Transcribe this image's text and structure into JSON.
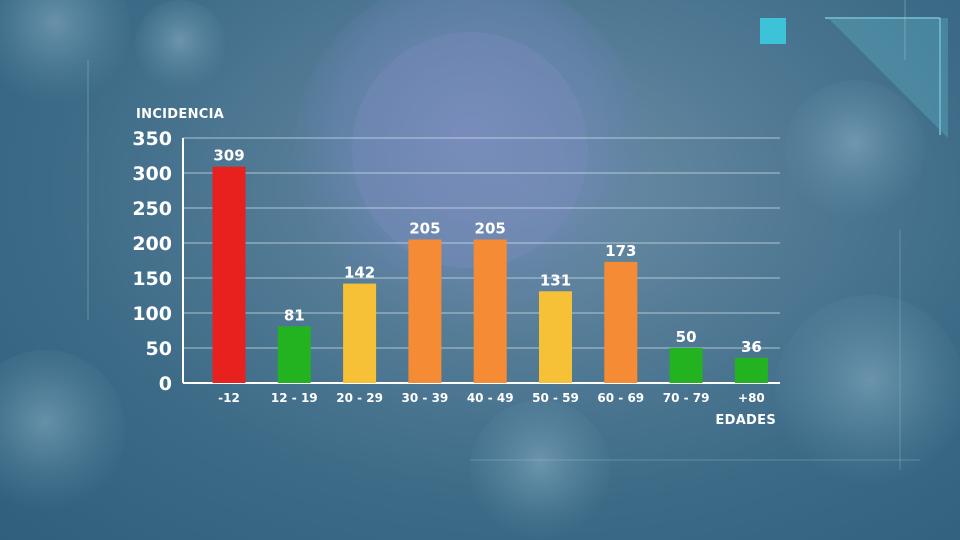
{
  "chart_data": {
    "type": "bar",
    "ylabel": "INCIDENCIA",
    "xlabel": "EDADES",
    "categories": [
      "-12",
      "12 - 19",
      "20 - 29",
      "30 - 39",
      "40 - 49",
      "50 - 59",
      "60 - 69",
      "70 - 79",
      "+80"
    ],
    "values": [
      309,
      81,
      142,
      205,
      205,
      131,
      173,
      50,
      36
    ],
    "value_labels": [
      "309",
      "81",
      "142",
      "205",
      "205",
      "131",
      "173",
      "50",
      "36"
    ],
    "bar_colors": [
      "#e8201e",
      "#23b320",
      "#f7c137",
      "#f58c35",
      "#f58c35",
      "#f7c137",
      "#f58c35",
      "#23b320",
      "#23b320"
    ],
    "ylim": [
      0,
      350
    ],
    "yticks": [
      0,
      50,
      100,
      150,
      200,
      250,
      300,
      350
    ],
    "ytick_labels": [
      "0",
      "50",
      "100",
      "150",
      "200",
      "250",
      "300",
      "350"
    ],
    "grid": true
  }
}
